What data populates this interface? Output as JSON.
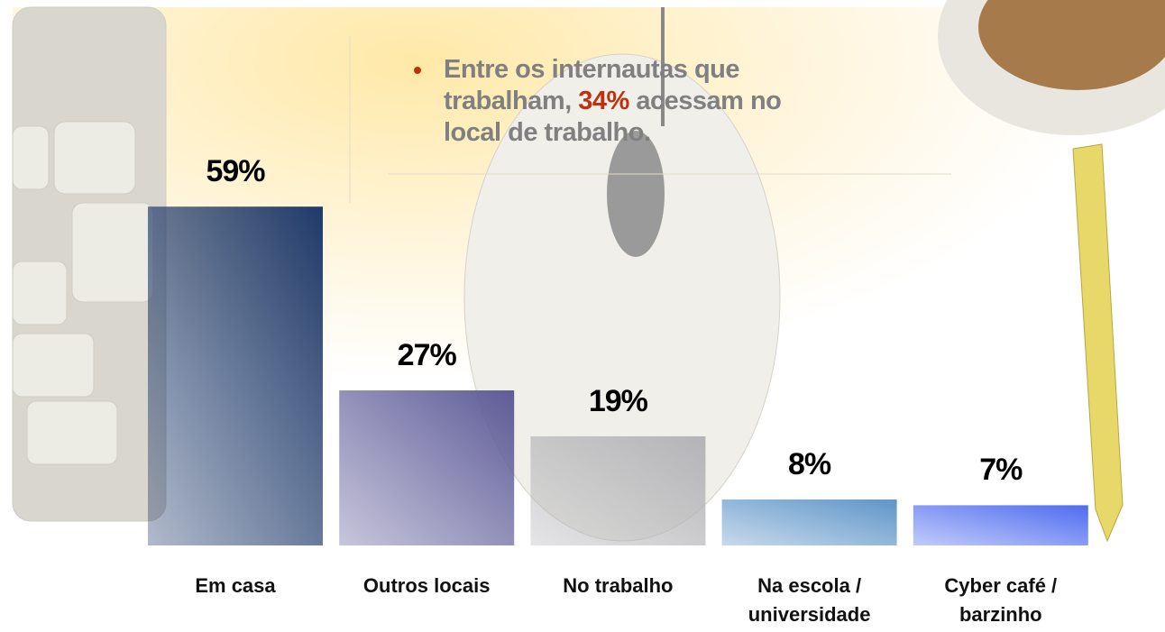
{
  "chart_data": {
    "type": "bar",
    "annotation": {
      "text_before": "Entre os internautas que trabalham,",
      "highlight": "34%",
      "text_after": "acessam no local de trabalho."
    },
    "categories": [
      "Em casa",
      "Outros locais",
      "No trabalho",
      "Na escola / universidade",
      "Cyber café / barzinho"
    ],
    "values": [
      59,
      27,
      19,
      8,
      7
    ],
    "value_labels": [
      "59%",
      "27%",
      "19%",
      "8%",
      "7%"
    ],
    "colors": [
      "#1f3a6a",
      "#5f5c98",
      "#b4b4b8",
      "#5f95c8",
      "#4f6cf0"
    ]
  }
}
